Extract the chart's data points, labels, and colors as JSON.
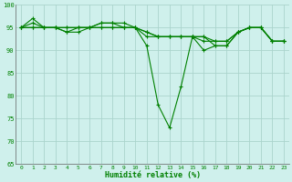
{
  "xlabel": "Humidité relative (%)",
  "background_color": "#cff0ec",
  "grid_color": "#aad4cc",
  "line_color": "#008000",
  "ylim": [
    65,
    100
  ],
  "yticks": [
    65,
    70,
    75,
    80,
    85,
    90,
    95,
    100
  ],
  "xticks": [
    0,
    1,
    2,
    3,
    4,
    5,
    6,
    7,
    8,
    9,
    10,
    11,
    12,
    13,
    14,
    15,
    16,
    17,
    18,
    19,
    20,
    21,
    22,
    23
  ],
  "series": [
    [
      95,
      97,
      95,
      95,
      94,
      94,
      95,
      95,
      95,
      95,
      95,
      91,
      78,
      73,
      82,
      93,
      90,
      91,
      91,
      94,
      95,
      95,
      92,
      92
    ],
    [
      95,
      96,
      95,
      95,
      94,
      95,
      95,
      96,
      96,
      96,
      95,
      94,
      93,
      93,
      93,
      93,
      93,
      91,
      91,
      94,
      95,
      95,
      92,
      92
    ],
    [
      95,
      95,
      95,
      95,
      95,
      95,
      95,
      96,
      96,
      95,
      95,
      94,
      93,
      93,
      93,
      93,
      93,
      92,
      92,
      94,
      95,
      95,
      92,
      92
    ],
    [
      95,
      95,
      95,
      95,
      95,
      95,
      95,
      95,
      95,
      95,
      95,
      93,
      93,
      93,
      93,
      93,
      92,
      92,
      92,
      94,
      95,
      95,
      92,
      92
    ]
  ]
}
